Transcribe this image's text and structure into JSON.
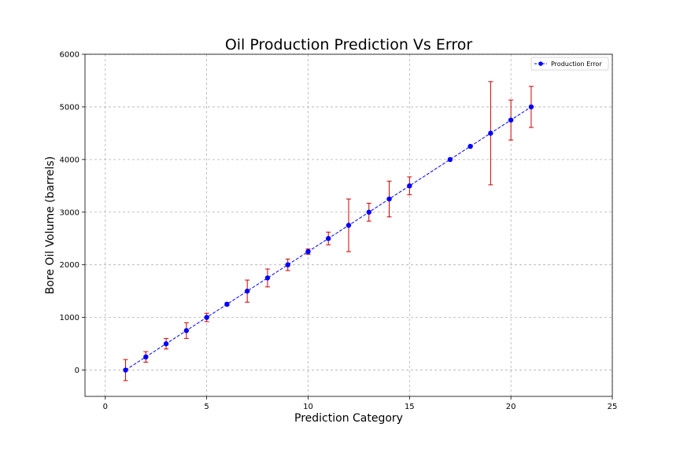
{
  "chart_data": {
    "type": "line",
    "title": "Oil Production Prediction Vs Error",
    "xlabel": "Prediction Category",
    "ylabel": "Bore Oil Volume (barrels)",
    "xlim": [
      -1,
      25
    ],
    "ylim": [
      -500,
      6000
    ],
    "xticks": [
      0,
      5,
      10,
      15,
      20,
      25
    ],
    "yticks": [
      0,
      1000,
      2000,
      3000,
      4000,
      5000,
      6000
    ],
    "grid": true,
    "legend_position": "top-right",
    "series": [
      {
        "name": "Production Error",
        "color": "#0000ff",
        "errorbar_color": "#cc0000",
        "line_style": "dashed",
        "marker": "circle",
        "x": [
          1,
          2,
          3,
          4,
          5,
          6,
          7,
          8,
          9,
          10,
          11,
          12,
          13,
          14,
          15,
          17,
          18,
          19,
          20,
          21
        ],
        "y": [
          0,
          250,
          500,
          750,
          1000,
          1250,
          1500,
          1750,
          2000,
          2250,
          2500,
          2750,
          3000,
          3250,
          3500,
          4000,
          4250,
          4500,
          4750,
          5000
        ],
        "error": [
          200,
          100,
          100,
          150,
          80,
          30,
          210,
          170,
          110,
          50,
          120,
          500,
          170,
          340,
          170,
          0,
          0,
          980,
          380,
          390
        ]
      }
    ]
  }
}
